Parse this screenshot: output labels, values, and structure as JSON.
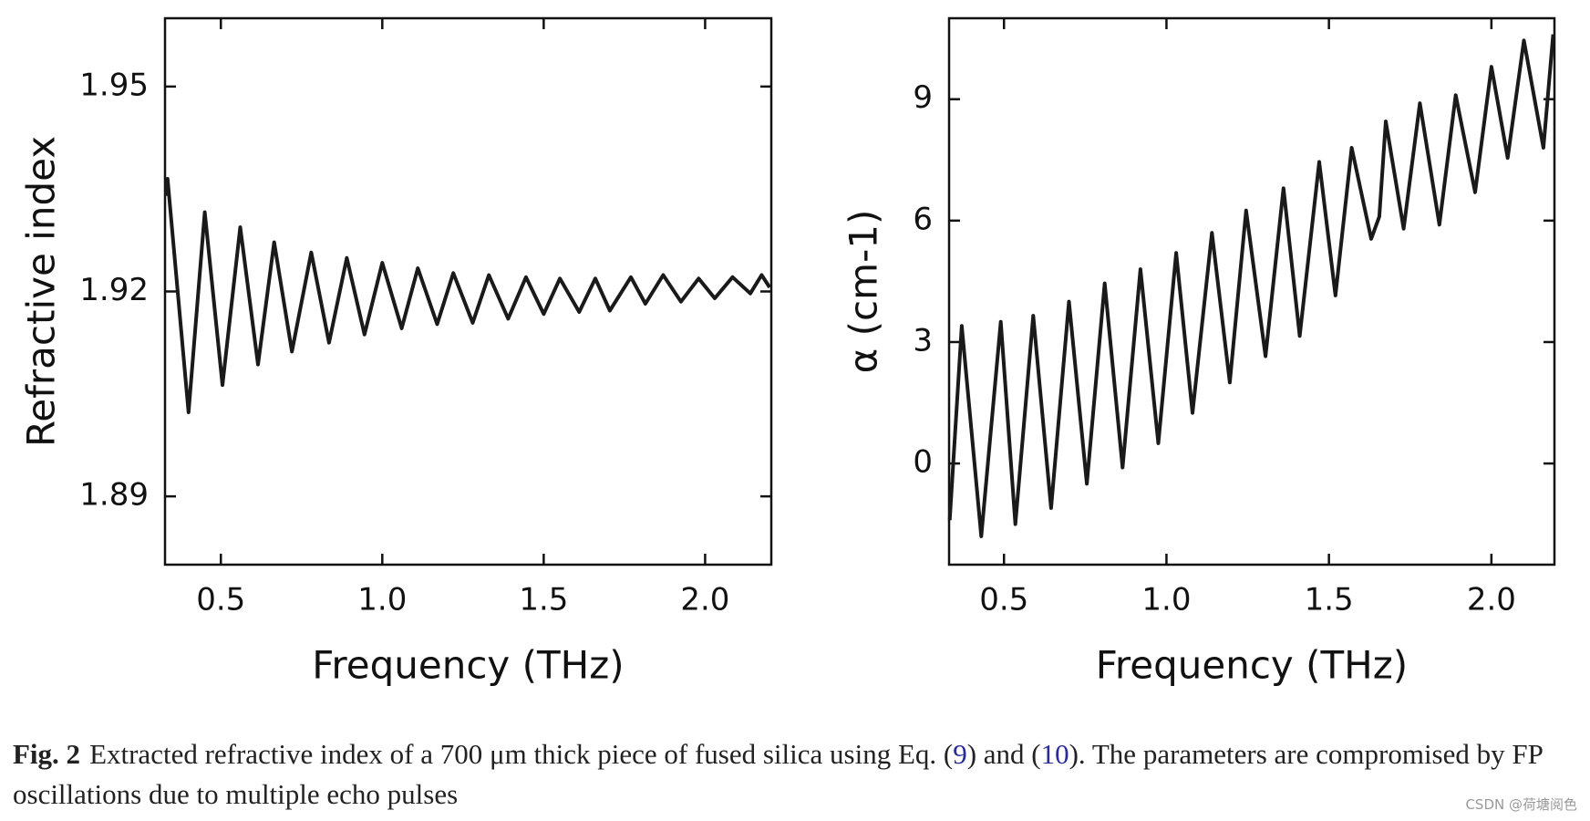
{
  "chart_data": [
    {
      "type": "line",
      "x_label": "Frequency (THz)",
      "y_label": "Refractive index",
      "xlim": [
        0.327,
        2.205
      ],
      "ylim": [
        1.88,
        1.96
      ],
      "xticks": [
        0.5,
        {
          "value": 1,
          "label": "1.0"
        },
        1.5,
        {
          "value": 2,
          "label": "2.0"
        }
      ],
      "yticks": [
        1.89,
        1.92,
        1.95
      ],
      "series": [
        {
          "color": "#1a1a1a",
          "x": [
            0.33,
            0.335,
            0.4,
            0.45,
            0.505,
            0.56,
            0.615,
            0.665,
            0.72,
            0.78,
            0.835,
            0.89,
            0.945,
            1.0,
            1.06,
            1.11,
            1.17,
            1.22,
            1.28,
            1.33,
            1.39,
            1.445,
            1.5,
            1.55,
            1.61,
            1.66,
            1.705,
            1.77,
            1.815,
            1.87,
            1.925,
            1.98,
            2.03,
            2.085,
            2.14,
            2.175,
            2.2
          ],
          "values": [
            1.934,
            1.9365,
            1.9023,
            1.9316,
            1.9063,
            1.9294,
            1.9093,
            1.9272,
            1.9112,
            1.9257,
            1.9125,
            1.9249,
            1.9137,
            1.9242,
            1.9146,
            1.9234,
            1.9152,
            1.9227,
            1.9154,
            1.9224,
            1.916,
            1.9221,
            1.9167,
            1.9219,
            1.917,
            1.9219,
            1.9172,
            1.9221,
            1.9182,
            1.9224,
            1.9185,
            1.9219,
            1.919,
            1.9221,
            1.9197,
            1.9224,
            1.9206
          ]
        }
      ]
    },
    {
      "type": "line",
      "x_label": "Frequency (THz)",
      "y_label": "α (cm-1)",
      "xlim": [
        0.331,
        2.194
      ],
      "ylim": [
        -2.5,
        11
      ],
      "xticks": [
        0.5,
        {
          "value": 1,
          "label": "1.0"
        },
        1.5,
        {
          "value": 2,
          "label": "2.0"
        }
      ],
      "yticks": [
        0,
        3,
        6,
        9
      ],
      "series": [
        {
          "color": "#1a1a1a",
          "x": [
            0.333,
            0.37,
            0.43,
            0.49,
            0.535,
            0.59,
            0.645,
            0.7,
            0.755,
            0.81,
            0.865,
            0.92,
            0.975,
            1.03,
            1.08,
            1.14,
            1.195,
            1.245,
            1.305,
            1.36,
            1.41,
            1.47,
            1.52,
            1.57,
            1.63,
            1.655,
            1.675,
            1.73,
            1.78,
            1.84,
            1.89,
            1.95,
            2.0,
            2.05,
            2.1,
            2.16,
            2.19
          ],
          "values": [
            -1.4,
            3.4,
            -1.8,
            3.5,
            -1.5,
            3.65,
            -1.1,
            4.0,
            -0.5,
            4.45,
            -0.1,
            4.8,
            0.5,
            5.2,
            1.25,
            5.7,
            2.0,
            6.25,
            2.65,
            6.8,
            3.15,
            7.45,
            4.15,
            7.8,
            5.55,
            6.1,
            8.45,
            5.8,
            8.9,
            5.9,
            9.1,
            6.7,
            9.8,
            7.55,
            10.45,
            7.8,
            10.6
          ]
        }
      ]
    }
  ],
  "caption": {
    "label": "Fig. 2",
    "text_before": "Extracted refractive index of a 700 μm thick piece of fused silica using Eq. (",
    "ref1": "9",
    "text_mid": ") and (",
    "ref2": "10",
    "text_after": "). The parameters are compromised by FP oscillations due to multiple echo pulses"
  },
  "watermark": "CSDN @荷塘阅色"
}
